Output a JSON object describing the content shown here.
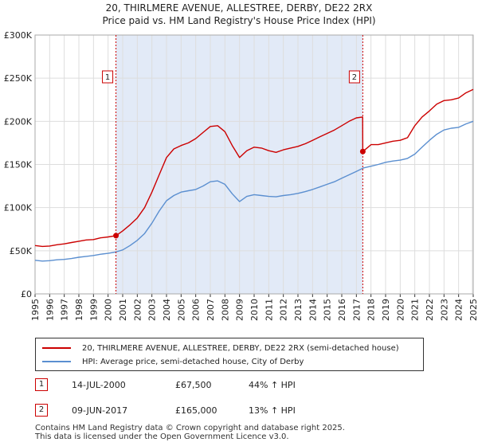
{
  "header": {
    "line1": "20, THIRLMERE AVENUE, ALLESTREE, DERBY, DE22 2RX",
    "line2": "Price paid vs. HM Land Registry's House Price Index (HPI)"
  },
  "colors": {
    "property": "#cc0000",
    "hpi": "#5b8fd0",
    "shade": "#dde6f6",
    "grid": "#dddddd"
  },
  "chart_data": {
    "type": "line",
    "xlabel": "",
    "ylabel": "",
    "xlim": [
      1995,
      2025
    ],
    "ylim": [
      0,
      300000
    ],
    "y_ticks": [
      0,
      50000,
      100000,
      150000,
      200000,
      250000,
      300000
    ],
    "y_tick_labels": [
      "£0",
      "£50K",
      "£100K",
      "£150K",
      "£200K",
      "£250K",
      "£300K"
    ],
    "x_tick_labels": [
      "1995",
      "1996",
      "1997",
      "1998",
      "1999",
      "2000",
      "2001",
      "2002",
      "2003",
      "2004",
      "2005",
      "2006",
      "2007",
      "2008",
      "2009",
      "2010",
      "2011",
      "2012",
      "2013",
      "2014",
      "2015",
      "2016",
      "2017",
      "2018",
      "2019",
      "2020",
      "2021",
      "2022",
      "2023",
      "2024",
      "2025"
    ],
    "shaded_region": [
      2000.54,
      2017.44
    ],
    "series": [
      {
        "name": "20, THIRLMERE AVENUE, ALLESTREE, DERBY, DE22 2RX (semi-detached house)",
        "x": [
          1995.0,
          1995.5,
          1996.0,
          1996.5,
          1997.0,
          1997.5,
          1998.0,
          1998.5,
          1999.0,
          1999.5,
          2000.0,
          2000.54,
          2001.0,
          2001.5,
          2002.0,
          2002.5,
          2003.0,
          2003.5,
          2004.0,
          2004.5,
          2005.0,
          2005.5,
          2006.0,
          2006.5,
          2007.0,
          2007.5,
          2008.0,
          2008.5,
          2009.0,
          2009.5,
          2010.0,
          2010.5,
          2011.0,
          2011.5,
          2012.0,
          2012.5,
          2013.0,
          2013.5,
          2014.0,
          2014.5,
          2015.0,
          2015.5,
          2016.0,
          2016.5,
          2017.0,
          2017.43,
          2017.44,
          2017.8,
          2018.0,
          2018.5,
          2019.0,
          2019.5,
          2020.0,
          2020.5,
          2021.0,
          2021.5,
          2022.0,
          2022.5,
          2023.0,
          2023.5,
          2024.0,
          2024.5,
          2025.0
        ],
        "values": [
          56000,
          55000,
          55500,
          57000,
          58000,
          59500,
          61000,
          62500,
          63000,
          65000,
          66000,
          67500,
          73000,
          80000,
          88000,
          100000,
          118000,
          138000,
          158000,
          168000,
          172000,
          175000,
          180000,
          187000,
          194000,
          195000,
          188000,
          172000,
          158000,
          166000,
          170000,
          169000,
          166000,
          164000,
          167000,
          169000,
          171000,
          174000,
          178000,
          182000,
          186000,
          190000,
          195000,
          200000,
          204000,
          205000,
          165000,
          170000,
          173000,
          173000,
          175000,
          177000,
          178000,
          181000,
          195000,
          205000,
          212000,
          220000,
          224000,
          225000,
          227000,
          233000,
          237000
        ]
      },
      {
        "name": "HPI: Average price, semi-detached house, City of Derby",
        "x": [
          1995.0,
          1995.5,
          1996.0,
          1996.5,
          1997.0,
          1997.5,
          1998.0,
          1998.5,
          1999.0,
          1999.5,
          2000.0,
          2000.5,
          2001.0,
          2001.5,
          2002.0,
          2002.5,
          2003.0,
          2003.5,
          2004.0,
          2004.5,
          2005.0,
          2005.5,
          2006.0,
          2006.5,
          2007.0,
          2007.5,
          2008.0,
          2008.5,
          2009.0,
          2009.5,
          2010.0,
          2010.5,
          2011.0,
          2011.5,
          2012.0,
          2012.5,
          2013.0,
          2013.5,
          2014.0,
          2014.5,
          2015.0,
          2015.5,
          2016.0,
          2016.5,
          2017.0,
          2017.5,
          2018.0,
          2018.5,
          2019.0,
          2019.5,
          2020.0,
          2020.5,
          2021.0,
          2021.5,
          2022.0,
          2022.5,
          2023.0,
          2023.5,
          2024.0,
          2024.5,
          2025.0
        ],
        "values": [
          39000,
          38000,
          38500,
          39500,
          40000,
          41000,
          42500,
          43500,
          44500,
          46000,
          47000,
          48500,
          51000,
          56000,
          62000,
          70000,
          82000,
          96000,
          108000,
          114000,
          118000,
          119500,
          121000,
          125000,
          130000,
          131000,
          127000,
          116000,
          107000,
          113000,
          115000,
          114000,
          113000,
          112500,
          114000,
          115000,
          116500,
          118500,
          121000,
          124000,
          127000,
          130000,
          134000,
          138000,
          142000,
          146000,
          148000,
          150000,
          152500,
          154000,
          155000,
          157000,
          162000,
          170000,
          178000,
          185000,
          190000,
          192000,
          193000,
          197000,
          200000
        ]
      }
    ],
    "sales": [
      {
        "label": "1",
        "x": 2000.54,
        "value": 67500
      },
      {
        "label": "2",
        "x": 2017.44,
        "value": 165000
      }
    ]
  },
  "legend": {
    "property_label": "20, THIRLMERE AVENUE, ALLESTREE, DERBY, DE22 2RX (semi-detached house)",
    "hpi_label": "HPI: Average price, semi-detached house, City of Derby"
  },
  "transactions": [
    {
      "num": "1",
      "date": "14-JUL-2000",
      "price": "£67,500",
      "hpi": "44% ↑ HPI"
    },
    {
      "num": "2",
      "date": "09-JUN-2017",
      "price": "£165,000",
      "hpi": "13% ↑ HPI"
    }
  ],
  "footer": {
    "line1": "Contains HM Land Registry data © Crown copyright and database right 2025.",
    "line2": "This data is licensed under the Open Government Licence v3.0."
  }
}
